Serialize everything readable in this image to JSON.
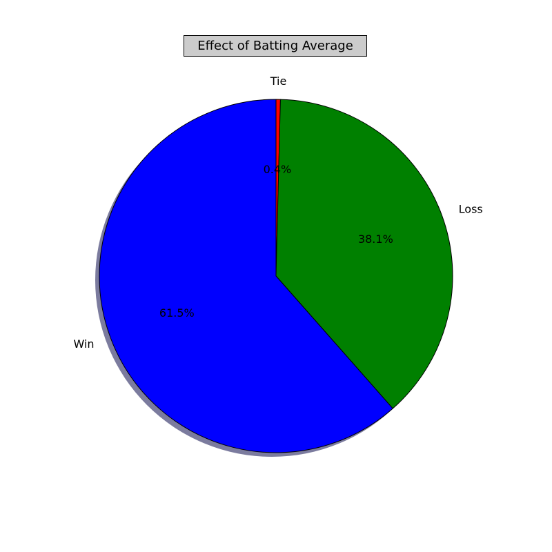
{
  "chart_data": {
    "type": "pie",
    "title": "Effect of Batting Average",
    "slices": [
      {
        "label": "Tie",
        "value": 0.4,
        "pct_label": "0.4%",
        "color": "#ff0000"
      },
      {
        "label": "Loss",
        "value": 38.1,
        "pct_label": "38.1%",
        "color": "#008000"
      },
      {
        "label": "Win",
        "value": 61.5,
        "pct_label": "61.5%",
        "color": "#0000ff"
      }
    ],
    "shadow": true,
    "start_angle": "top",
    "direction": "clockwise"
  }
}
